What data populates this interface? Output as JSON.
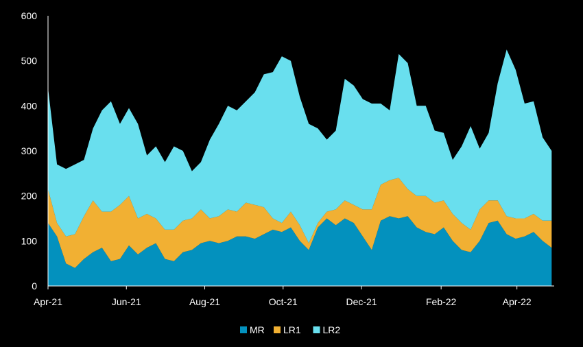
{
  "chart_data": {
    "type": "area",
    "stacked": true,
    "grid": false,
    "legend_position": "bottom-center",
    "background": "#000000",
    "ylim": [
      0,
      600
    ],
    "yticks": [
      0,
      100,
      200,
      300,
      400,
      500,
      600
    ],
    "ytick_labels": [
      "0",
      "100",
      "200",
      "300",
      "400",
      "500",
      "600"
    ],
    "xlim": [
      "2021-04-01",
      "2022-04-30"
    ],
    "xticks": [
      "2021-04-01",
      "2021-06-01",
      "2021-08-01",
      "2021-10-01",
      "2021-12-01",
      "2022-02-01",
      "2022-04-01"
    ],
    "xtick_labels": [
      "Apr-21",
      "Jun-21",
      "Aug-21",
      "Oct-21",
      "Dec-21",
      "Feb-22",
      "Apr-22"
    ],
    "x": [
      "2021-04-01",
      "2021-04-08",
      "2021-04-15",
      "2021-04-22",
      "2021-04-29",
      "2021-05-06",
      "2021-05-13",
      "2021-05-20",
      "2021-05-27",
      "2021-06-03",
      "2021-06-10",
      "2021-06-17",
      "2021-06-24",
      "2021-07-01",
      "2021-07-08",
      "2021-07-15",
      "2021-07-22",
      "2021-07-29",
      "2021-08-05",
      "2021-08-12",
      "2021-08-19",
      "2021-08-26",
      "2021-09-02",
      "2021-09-09",
      "2021-09-16",
      "2021-09-23",
      "2021-09-30",
      "2021-10-07",
      "2021-10-14",
      "2021-10-21",
      "2021-10-28",
      "2021-11-04",
      "2021-11-11",
      "2021-11-18",
      "2021-11-25",
      "2021-12-02",
      "2021-12-09",
      "2021-12-16",
      "2021-12-23",
      "2021-12-30",
      "2022-01-06",
      "2022-01-13",
      "2022-01-20",
      "2022-01-27",
      "2022-02-03",
      "2022-02-10",
      "2022-02-17",
      "2022-02-24",
      "2022-03-03",
      "2022-03-10",
      "2022-03-17",
      "2022-03-24",
      "2022-03-31",
      "2022-04-07",
      "2022-04-14",
      "2022-04-21",
      "2022-04-28"
    ],
    "series": [
      {
        "name": "MR",
        "color": "#0391BE",
        "values": [
          140,
          110,
          50,
          40,
          60,
          75,
          85,
          55,
          60,
          90,
          70,
          85,
          95,
          60,
          55,
          75,
          80,
          95,
          100,
          95,
          100,
          110,
          110,
          105,
          115,
          125,
          120,
          130,
          100,
          80,
          130,
          150,
          135,
          150,
          140,
          110,
          80,
          145,
          155,
          150,
          155,
          130,
          120,
          115,
          130,
          100,
          80,
          75,
          100,
          140,
          145,
          115,
          105,
          110,
          120,
          100,
          85
        ]
      },
      {
        "name": "LR1",
        "color": "#F1B033",
        "values": [
          75,
          30,
          60,
          75,
          95,
          115,
          80,
          110,
          120,
          110,
          80,
          75,
          55,
          65,
          70,
          70,
          70,
          75,
          50,
          60,
          70,
          55,
          75,
          75,
          60,
          25,
          20,
          35,
          35,
          15,
          10,
          15,
          35,
          40,
          40,
          60,
          90,
          80,
          80,
          90,
          60,
          70,
          80,
          70,
          60,
          60,
          60,
          50,
          70,
          50,
          45,
          40,
          45,
          40,
          40,
          45,
          60
        ]
      },
      {
        "name": "LR2",
        "color": "#69DFEE",
        "values": [
          225,
          130,
          150,
          155,
          125,
          160,
          225,
          245,
          180,
          195,
          210,
          130,
          160,
          150,
          185,
          155,
          105,
          105,
          175,
          205,
          230,
          225,
          225,
          250,
          295,
          325,
          370,
          335,
          285,
          265,
          210,
          160,
          175,
          270,
          265,
          245,
          235,
          180,
          155,
          275,
          280,
          200,
          200,
          160,
          150,
          120,
          170,
          230,
          135,
          150,
          260,
          370,
          330,
          255,
          250,
          185,
          155
        ]
      }
    ]
  },
  "legend": [
    {
      "label": "MR",
      "color": "#0391BE"
    },
    {
      "label": "LR1",
      "color": "#F1B033"
    },
    {
      "label": "LR2",
      "color": "#69DFEE"
    }
  ]
}
